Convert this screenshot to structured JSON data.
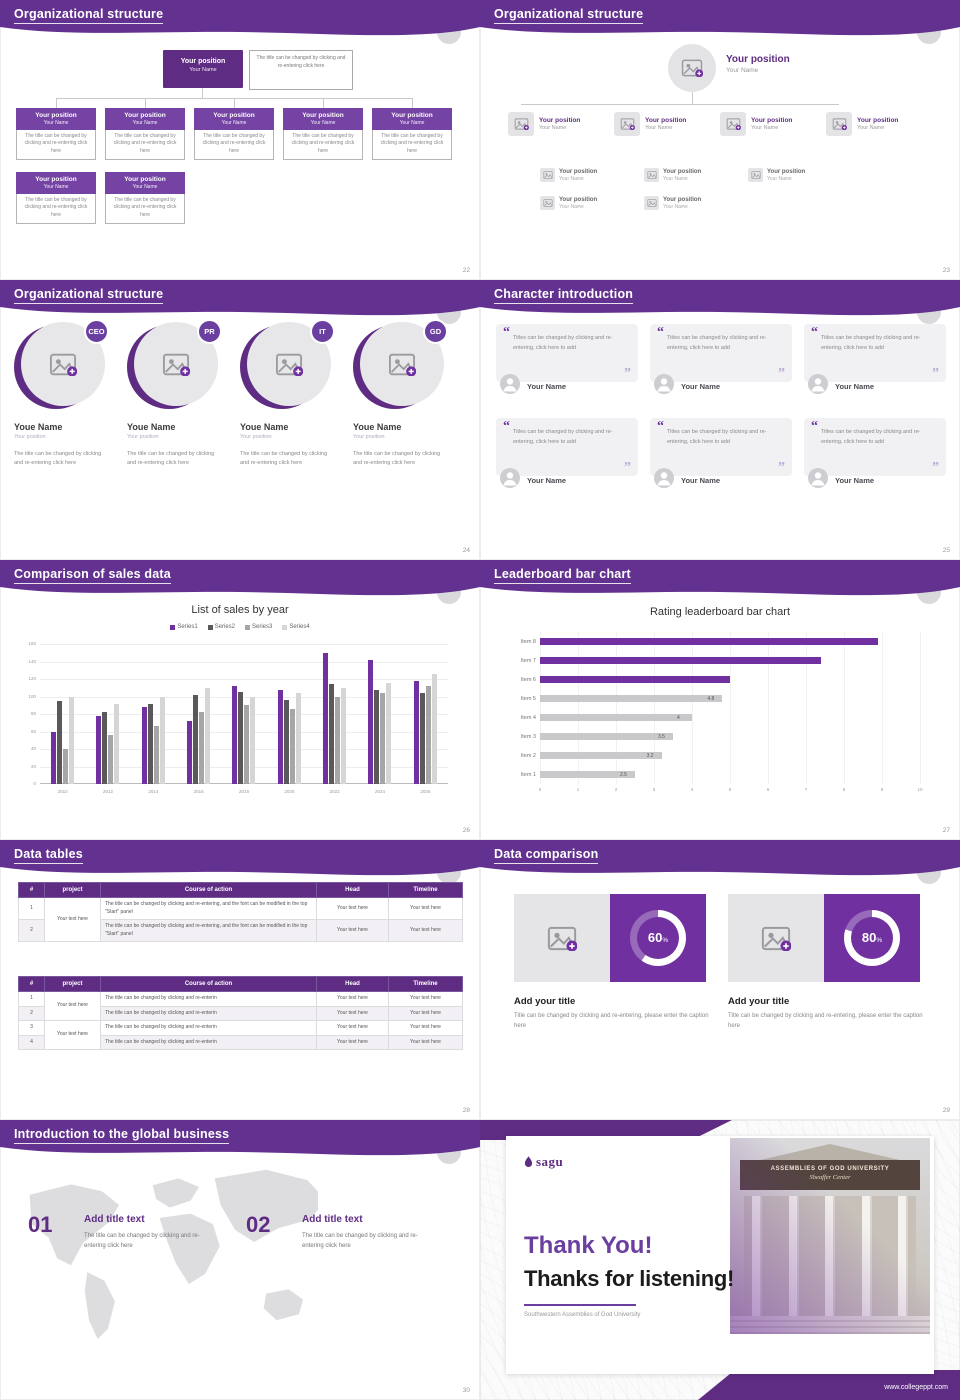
{
  "colors": {
    "purple": "#7030A0",
    "purple_dark": "#5F2C83",
    "header": "#63318F",
    "gray_bar": "#C9C9CC",
    "light_gray": "#E4E4E6"
  },
  "slides": {
    "s22": {
      "title": "Organizational structure",
      "page": "22",
      "root_position": "Your position",
      "root_name": "Your Name",
      "root_caption": "The title can be changed by clicking and re-entering click here",
      "node_position": "Your position",
      "node_name": "Your Name",
      "node_caption": "The title can be changed by clicking and re-entering click here",
      "row1_count": 5,
      "row2_count": 2
    },
    "s23": {
      "title": "Organizational structure",
      "page": "23",
      "position": "Your position",
      "name": "Your Name",
      "main_count": 4,
      "sub_row1_count": 3,
      "sub_row2_count": 2
    },
    "s24": {
      "title": "Organizational structure",
      "page": "24",
      "roles": [
        "CEO",
        "PR",
        "IT",
        "GD"
      ],
      "name": "Youe Name",
      "position": "Your position",
      "caption": "The title can be changed by clicking and re-entering click here"
    },
    "s25": {
      "title": "Character introduction",
      "page": "25",
      "card_count": 6,
      "quote": "Titles can be changed by clicking and re-entering, click here to add",
      "name": "Your Name"
    },
    "s26": {
      "title": "Comparison of sales data",
      "page": "26",
      "chart_title": "List of sales by year"
    },
    "s27": {
      "title": "Leaderboard bar chart",
      "page": "27",
      "chart_title": "Rating leaderboard bar chart"
    },
    "s28": {
      "title": "Data tables",
      "page": "28",
      "headers": [
        "#",
        "project",
        "Course of action",
        "Head",
        "Timeline"
      ],
      "table1": {
        "nums": [
          "1",
          "2"
        ],
        "project": "Your text here",
        "course": "The title can be changed by clicking and re-entering, and the font can be modified in the top \"Start\" panel",
        "head": "Your text here",
        "timeline": "Your text here"
      },
      "table2": {
        "nums": [
          "1",
          "2",
          "3",
          "4"
        ],
        "project": "Your text here",
        "course": "The title can be changed by clicking and re-enterin",
        "head": "Your text here",
        "timeline": "Your text here"
      }
    },
    "s29": {
      "title": "Data comparison",
      "page": "29",
      "percent_sign": "%",
      "panels": [
        {
          "percent": 60,
          "percent_label": "60",
          "title": "Add your title",
          "caption": "Title can be changed by clicking and re-entering, please enter the caption here"
        },
        {
          "percent": 80,
          "percent_label": "80",
          "title": "Add your title",
          "caption": "Title can be changed by clicking and re-entering, please enter the caption here"
        }
      ]
    },
    "s30": {
      "title": "Introduction to the global business",
      "page": "30",
      "items": [
        {
          "number": "01",
          "title": "Add title text",
          "caption": "The title can be changed by clicking and re-entering click here"
        },
        {
          "number": "02",
          "title": "Add title text",
          "caption": "The title can be changed by clicking and re-entering click here"
        }
      ]
    },
    "s31": {
      "logo": "sagu",
      "sign_line1": "ASSEMBLIES OF GOD UNIVERSITY",
      "sign_line2": "Sheaffer Center",
      "thank_you": "Thank You!",
      "subtitle": "Thanks for listening!",
      "org": "Southwestern Assemblies of God University",
      "website": "www.collegeppt.com"
    }
  },
  "chart_data": [
    {
      "type": "bar",
      "title": "List of sales by year",
      "categories": [
        "2010",
        "2012",
        "2014",
        "2016",
        "2018",
        "2020",
        "2022",
        "2024",
        "2026"
      ],
      "series": [
        {
          "name": "Series1",
          "color": "#7030A0",
          "values": [
            60,
            78,
            88,
            72,
            112,
            108,
            150,
            142,
            118
          ]
        },
        {
          "name": "Series2",
          "color": "#595959",
          "values": [
            95,
            82,
            92,
            102,
            105,
            96,
            114,
            108,
            104
          ]
        },
        {
          "name": "Series3",
          "color": "#A6A6A6",
          "values": [
            40,
            56,
            66,
            82,
            90,
            86,
            100,
            104,
            112
          ]
        },
        {
          "name": "Series4",
          "color": "#D6D6D9",
          "values": [
            100,
            92,
            100,
            110,
            100,
            104,
            110,
            116,
            126
          ]
        }
      ],
      "ylim": [
        0,
        160
      ],
      "ytick": 20,
      "grid": true,
      "legend_position": "top",
      "xlabel": "",
      "ylabel": ""
    },
    {
      "type": "bar-horizontal",
      "title": "Rating leaderboard bar chart",
      "categories": [
        "Item 8",
        "Item 7",
        "Item 6",
        "Item 5",
        "Item 4",
        "Item 3",
        "Item 2",
        "Item 1"
      ],
      "values": [
        8.9,
        7.4,
        5.0,
        4.8,
        4,
        3.5,
        3.2,
        2.5
      ],
      "colors": [
        "#7030A0",
        "#7030A0",
        "#7030A0",
        "#C9C9CC",
        "#C9C9CC",
        "#C9C9CC",
        "#C9C9CC",
        "#C9C9CC"
      ],
      "labels": [
        "",
        "",
        "",
        "4.8",
        "4",
        "3.5",
        "3.2",
        "2.5"
      ],
      "xlim": [
        0,
        10
      ],
      "xticks": [
        0,
        1,
        2,
        3,
        4,
        5,
        6,
        7,
        8,
        9,
        10
      ],
      "grid": true
    }
  ]
}
